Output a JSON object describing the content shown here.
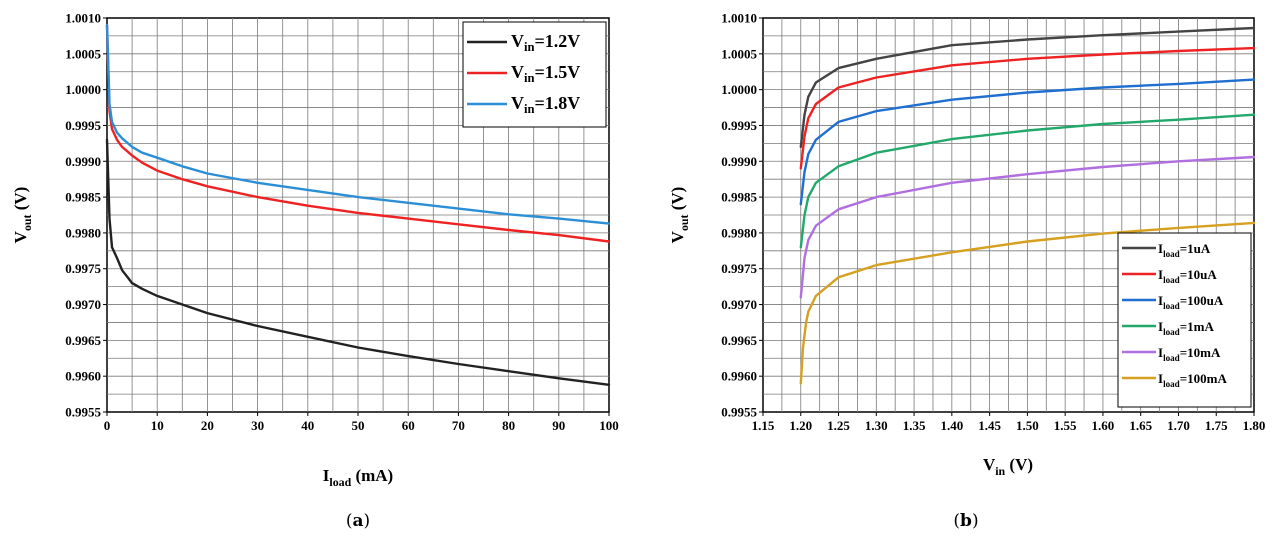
{
  "chart_data": [
    {
      "id": "a",
      "type": "line",
      "caption": {
        "open": "(",
        "letter": "a",
        "close": ")"
      },
      "xlabel": {
        "main": "I",
        "sub": "load",
        "unit": " (mA)"
      },
      "ylabel": {
        "main": "V",
        "sub": "out",
        "unit": " (V)"
      },
      "xlim": [
        0,
        100
      ],
      "ylim": [
        0.9955,
        1.001
      ],
      "xticks": [
        "0",
        "10",
        "20",
        "30",
        "40",
        "50",
        "60",
        "70",
        "80",
        "90",
        "100"
      ],
      "yticks": [
        "1.0010",
        "1.0005",
        "1.0000",
        "0.9995",
        "0.9990",
        "0.9985",
        "0.9980",
        "0.9975",
        "0.9970",
        "0.9965",
        "0.9960",
        "0.9955"
      ],
      "grid": true,
      "legend_position": "top-right",
      "series": [
        {
          "name_main": "V",
          "name_sub": "in",
          "name_rest": "=1.2V",
          "color": "#222222",
          "x": [
            0,
            0.5,
            1,
            2,
            3,
            5,
            7,
            10,
            15,
            20,
            30,
            40,
            50,
            60,
            70,
            80,
            90,
            100
          ],
          "y": [
            0.9993,
            0.9982,
            0.9978,
            0.99765,
            0.99748,
            0.9973,
            0.99722,
            0.99712,
            0.997,
            0.99688,
            0.9967,
            0.99655,
            0.9964,
            0.99628,
            0.99617,
            0.99607,
            0.99597,
            0.99588
          ]
        },
        {
          "name_main": "V",
          "name_sub": "in",
          "name_rest": "=1.5V",
          "color": "#ee2222",
          "x": [
            0,
            0.5,
            1,
            2,
            3,
            5,
            7,
            10,
            15,
            20,
            30,
            40,
            50,
            60,
            70,
            80,
            90,
            100
          ],
          "y": [
            1.0009,
            0.9997,
            0.99945,
            0.9993,
            0.9992,
            0.99908,
            0.99898,
            0.99887,
            0.99875,
            0.99865,
            0.9985,
            0.99838,
            0.99828,
            0.9982,
            0.99812,
            0.99804,
            0.99797,
            0.99788
          ]
        },
        {
          "name_main": "V",
          "name_sub": "in",
          "name_rest": "=1.8V",
          "color": "#2a8fd6",
          "x": [
            0,
            0.5,
            1,
            2,
            3,
            5,
            7,
            10,
            15,
            20,
            30,
            40,
            50,
            60,
            70,
            80,
            90,
            100
          ],
          "y": [
            1.0009,
            0.9998,
            0.99955,
            0.9994,
            0.99932,
            0.9992,
            0.99912,
            0.99905,
            0.99893,
            0.99883,
            0.9987,
            0.9986,
            0.9985,
            0.99842,
            0.99834,
            0.99826,
            0.9982,
            0.99813
          ]
        }
      ]
    },
    {
      "id": "b",
      "type": "line",
      "caption": {
        "open": "(",
        "letter": "b",
        "close": ")"
      },
      "xlabel": {
        "main": "V",
        "sub": "in",
        "unit": " (V)"
      },
      "ylabel": {
        "main": "V",
        "sub": "out",
        "unit": " (V)"
      },
      "xlim": [
        1.15,
        1.8
      ],
      "ylim": [
        0.9955,
        1.001
      ],
      "xticks": [
        "1.15",
        "1.20",
        "1.25",
        "1.30",
        "1.35",
        "1.40",
        "1.45",
        "1.50",
        "1.55",
        "1.60",
        "1.65",
        "1.70",
        "1.75",
        "1.80"
      ],
      "yticks": [
        "1.0010",
        "1.0005",
        "1.0000",
        "0.9995",
        "0.9990",
        "0.9985",
        "0.9980",
        "0.9975",
        "0.9970",
        "0.9965",
        "0.9960",
        "0.9955"
      ],
      "grid": true,
      "legend_position": "bottom-right",
      "series": [
        {
          "name_main": "I",
          "name_sub": "load",
          "name_rest": "=1uA",
          "color": "#444444",
          "x": [
            1.2,
            1.205,
            1.21,
            1.22,
            1.25,
            1.3,
            1.4,
            1.5,
            1.6,
            1.7,
            1.8
          ],
          "y": [
            0.9992,
            0.99965,
            0.9999,
            1.0001,
            1.0003,
            1.00043,
            1.00062,
            1.0007,
            1.00076,
            1.00081,
            1.00086
          ]
        },
        {
          "name_main": "I",
          "name_sub": "load",
          "name_rest": "=10uA",
          "color": "#ee2222",
          "x": [
            1.2,
            1.205,
            1.21,
            1.22,
            1.25,
            1.3,
            1.4,
            1.5,
            1.6,
            1.7,
            1.8
          ],
          "y": [
            0.9989,
            0.99935,
            0.9996,
            0.9998,
            1.00003,
            1.00017,
            1.00034,
            1.00043,
            1.00049,
            1.00054,
            1.00058
          ]
        },
        {
          "name_main": "I",
          "name_sub": "load",
          "name_rest": "=100uA",
          "color": "#1f6fd0",
          "x": [
            1.2,
            1.205,
            1.21,
            1.22,
            1.25,
            1.3,
            1.4,
            1.5,
            1.6,
            1.7,
            1.8
          ],
          "y": [
            0.9984,
            0.99885,
            0.9991,
            0.9993,
            0.99955,
            0.9997,
            0.99986,
            0.99996,
            1.00003,
            1.00008,
            1.00014
          ]
        },
        {
          "name_main": "I",
          "name_sub": "load",
          "name_rest": "=1mA",
          "color": "#22a86a",
          "x": [
            1.2,
            1.205,
            1.21,
            1.22,
            1.25,
            1.3,
            1.4,
            1.5,
            1.6,
            1.7,
            1.8
          ],
          "y": [
            0.9978,
            0.99825,
            0.9985,
            0.9987,
            0.99893,
            0.99912,
            0.99931,
            0.99943,
            0.99952,
            0.99958,
            0.99965
          ]
        },
        {
          "name_main": "I",
          "name_sub": "load",
          "name_rest": "=10mA",
          "color": "#b06ee0",
          "x": [
            1.2,
            1.205,
            1.21,
            1.22,
            1.25,
            1.3,
            1.4,
            1.5,
            1.6,
            1.7,
            1.8
          ],
          "y": [
            0.9971,
            0.99765,
            0.9979,
            0.9981,
            0.99833,
            0.9985,
            0.9987,
            0.99882,
            0.99892,
            0.999,
            0.99906
          ]
        },
        {
          "name_main": "I",
          "name_sub": "load",
          "name_rest": "=100mA",
          "color": "#d6a020",
          "x": [
            1.2,
            1.203,
            1.207,
            1.21,
            1.22,
            1.25,
            1.3,
            1.4,
            1.5,
            1.6,
            1.7,
            1.8
          ],
          "y": [
            0.9959,
            0.9964,
            0.99675,
            0.9969,
            0.99712,
            0.99738,
            0.99755,
            0.99773,
            0.99788,
            0.99799,
            0.99807,
            0.99814
          ]
        }
      ]
    }
  ]
}
